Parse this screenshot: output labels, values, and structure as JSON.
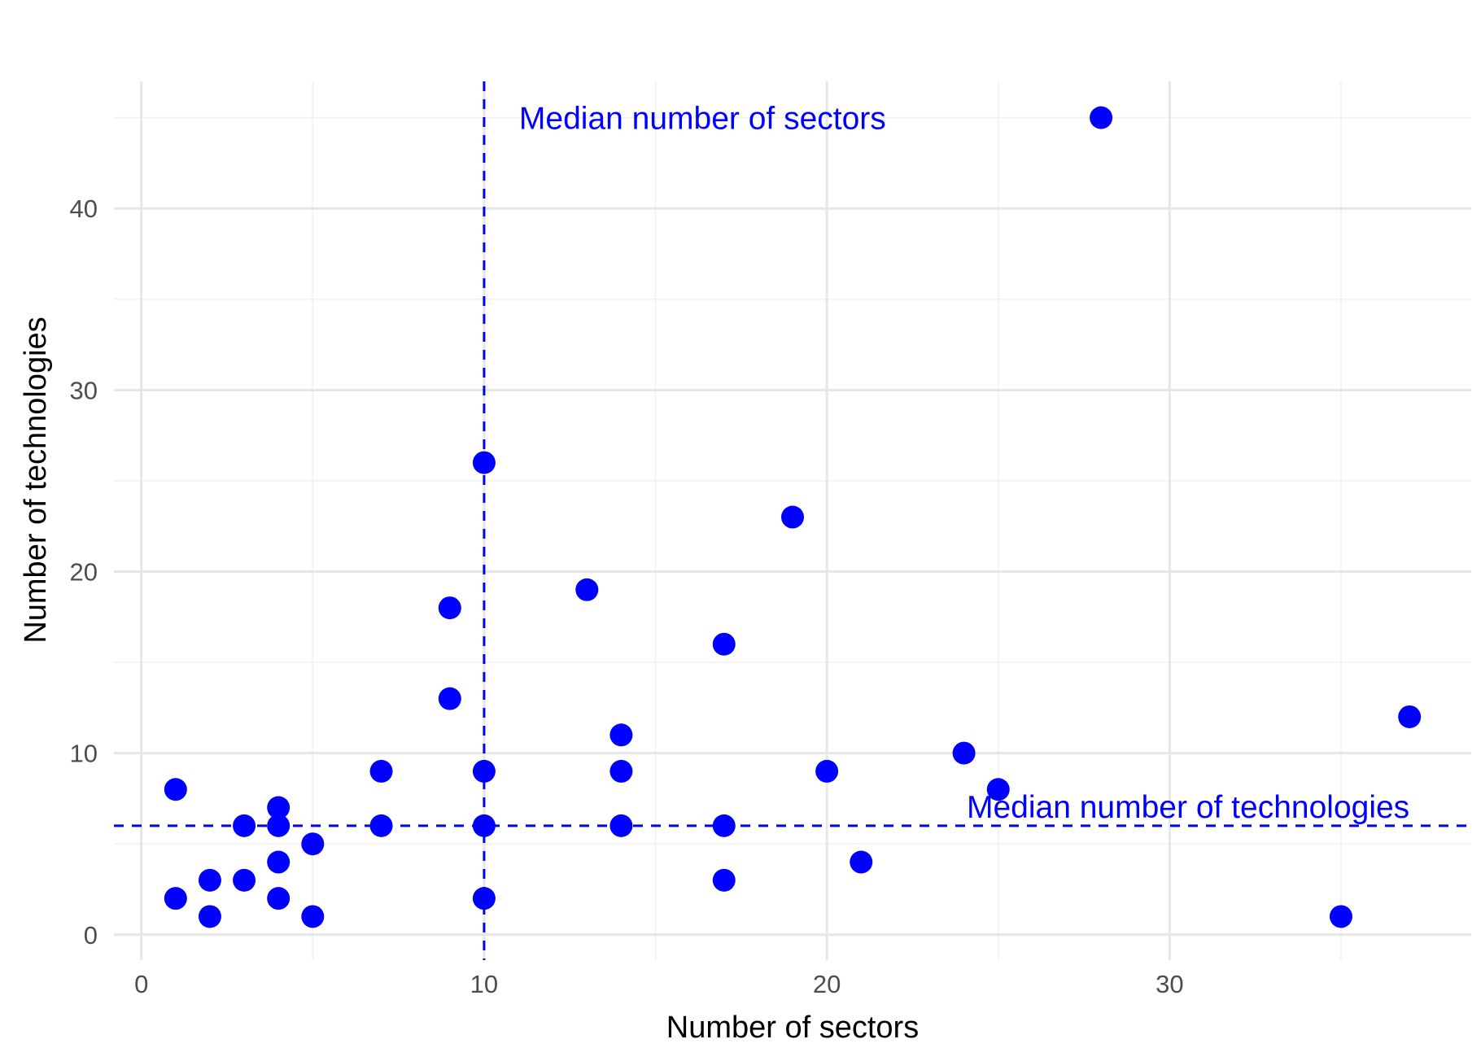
{
  "chart_data": {
    "type": "scatter",
    "title": "",
    "xlabel": "Number of sectors",
    "ylabel": "Number of technologies",
    "xlim": [
      -0.8,
      38.8
    ],
    "ylim": [
      -1.4,
      47.0
    ],
    "x_ticks": [
      0,
      10,
      20,
      30
    ],
    "x_tick_labels": [
      "0",
      "10",
      "20",
      "30"
    ],
    "x_minor_ticks": [
      5,
      15,
      25,
      35
    ],
    "y_ticks": [
      0,
      10,
      20,
      30,
      40
    ],
    "y_tick_labels": [
      "0",
      "10",
      "20",
      "30",
      "40"
    ],
    "y_minor_ticks": [
      5,
      15,
      25,
      35,
      45
    ],
    "grid": true,
    "legend": "none",
    "point_color": "#0000FF",
    "points": [
      {
        "x": 1,
        "y": 8
      },
      {
        "x": 1,
        "y": 2
      },
      {
        "x": 2,
        "y": 3
      },
      {
        "x": 2,
        "y": 1
      },
      {
        "x": 3,
        "y": 6
      },
      {
        "x": 3,
        "y": 3
      },
      {
        "x": 4,
        "y": 7
      },
      {
        "x": 4,
        "y": 6
      },
      {
        "x": 4,
        "y": 4
      },
      {
        "x": 4,
        "y": 2
      },
      {
        "x": 5,
        "y": 5
      },
      {
        "x": 5,
        "y": 1
      },
      {
        "x": 7,
        "y": 9
      },
      {
        "x": 7,
        "y": 6
      },
      {
        "x": 9,
        "y": 18
      },
      {
        "x": 9,
        "y": 13
      },
      {
        "x": 10,
        "y": 26
      },
      {
        "x": 10,
        "y": 9
      },
      {
        "x": 10,
        "y": 6
      },
      {
        "x": 10,
        "y": 2
      },
      {
        "x": 13,
        "y": 19
      },
      {
        "x": 14,
        "y": 11
      },
      {
        "x": 14,
        "y": 9
      },
      {
        "x": 14,
        "y": 6
      },
      {
        "x": 17,
        "y": 16
      },
      {
        "x": 17,
        "y": 6
      },
      {
        "x": 17,
        "y": 3
      },
      {
        "x": 19,
        "y": 23
      },
      {
        "x": 20,
        "y": 9
      },
      {
        "x": 21,
        "y": 4
      },
      {
        "x": 24,
        "y": 10
      },
      {
        "x": 25,
        "y": 8
      },
      {
        "x": 28,
        "y": 45
      },
      {
        "x": 35,
        "y": 1
      },
      {
        "x": 37,
        "y": 12
      }
    ],
    "reference_lines": [
      {
        "orientation": "vertical",
        "value": 10,
        "label": "Median number of sectors",
        "color": "#0000FF",
        "style": "dashed"
      },
      {
        "orientation": "horizontal",
        "value": 6,
        "label": "Median number of technologies",
        "color": "#0000FF",
        "style": "dashed"
      }
    ]
  }
}
